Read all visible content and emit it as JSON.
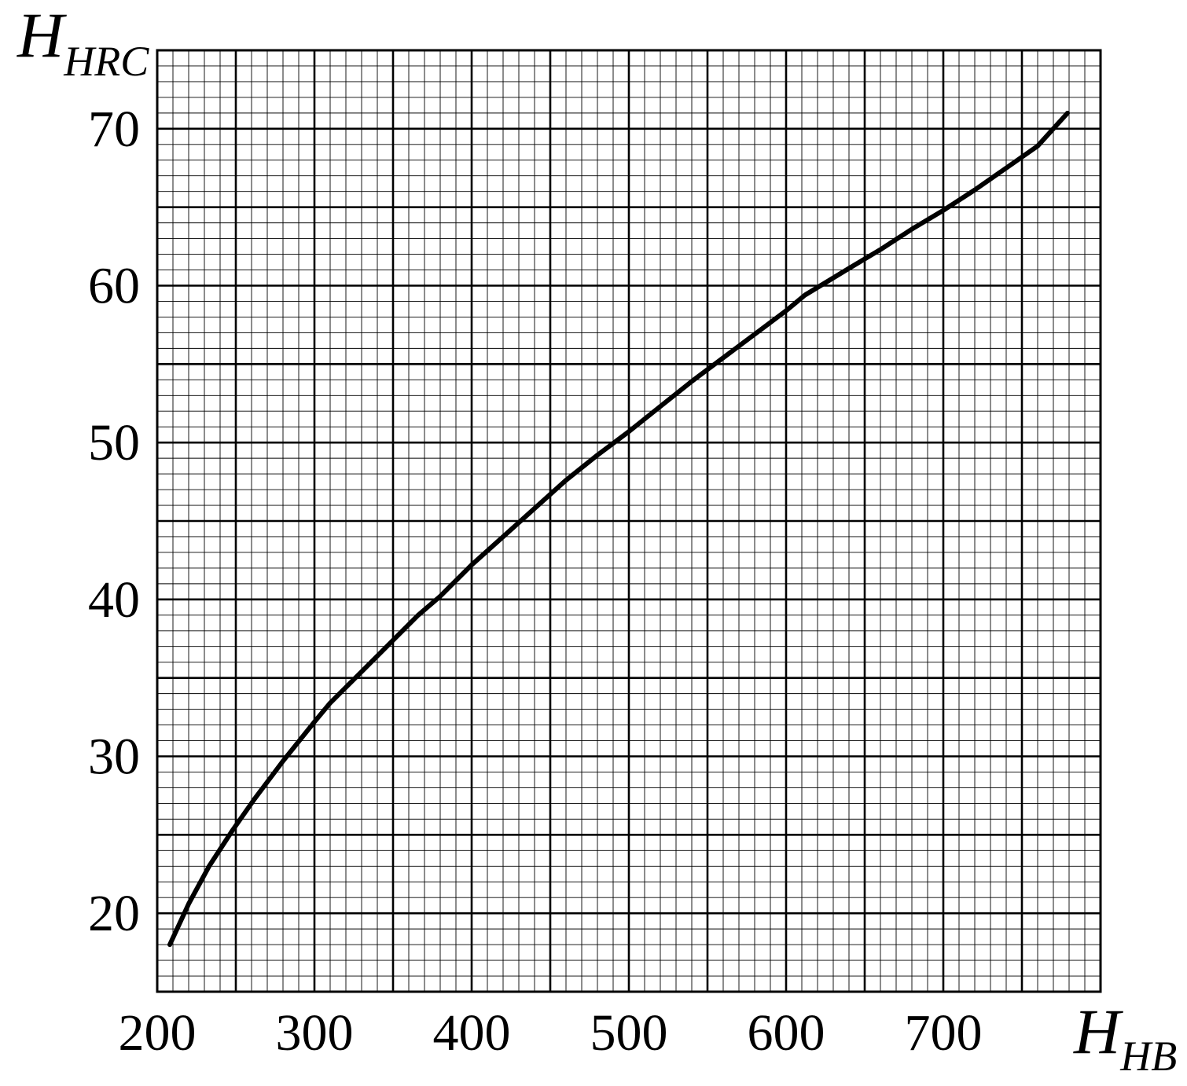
{
  "chart_data": {
    "type": "line",
    "title": "",
    "xlabel": {
      "main": "H",
      "sub": "HB"
    },
    "ylabel": {
      "main": "H",
      "sub": "HRC"
    },
    "xlim": [
      200,
      800
    ],
    "ylim": [
      15,
      75
    ],
    "xticks": [
      200,
      300,
      400,
      500,
      600,
      700
    ],
    "yticks": [
      20,
      30,
      40,
      50,
      60,
      70
    ],
    "grid": {
      "major_x_step": 50,
      "major_y_step": 5,
      "minor_x_step": 10,
      "minor_y_step": 1
    },
    "line_color": "#000000",
    "grid_color": "#000000",
    "series": [
      {
        "x": [
          208,
          220,
          233,
          248,
          262,
          280,
          300,
          310,
          330,
          350,
          366,
          380,
          400,
          420,
          440,
          460,
          480,
          500,
          520,
          540,
          560,
          580,
          600,
          612,
          640,
          660,
          680,
          700,
          720,
          740,
          760,
          779
        ],
        "y": [
          18.0,
          20.6,
          23.0,
          25.3,
          27.3,
          29.7,
          32.2,
          33.4,
          35.4,
          37.4,
          39.0,
          40.2,
          42.2,
          44.0,
          45.8,
          47.6,
          49.2,
          50.7,
          52.3,
          53.9,
          55.4,
          56.9,
          58.4,
          59.4,
          61.1,
          62.3,
          63.6,
          64.8,
          66.1,
          67.5,
          68.9,
          71.0
        ]
      }
    ]
  }
}
